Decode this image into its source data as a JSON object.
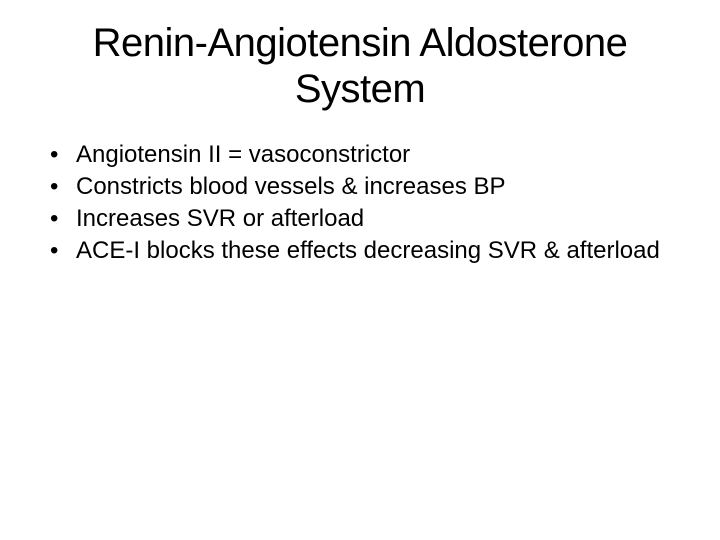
{
  "slide": {
    "title": "Renin-Angiotensin Aldosterone System",
    "bullets": [
      "Angiotensin II  = vasoconstrictor",
      "Constricts blood vessels & increases BP",
      "Increases SVR or afterload",
      "ACE-I blocks these effects decreasing SVR & afterload"
    ],
    "bullet_marker": "•",
    "background_color": "#ffffff",
    "text_color": "#000000",
    "title_fontsize": 40,
    "body_fontsize": 24,
    "font_family": "Arial"
  }
}
